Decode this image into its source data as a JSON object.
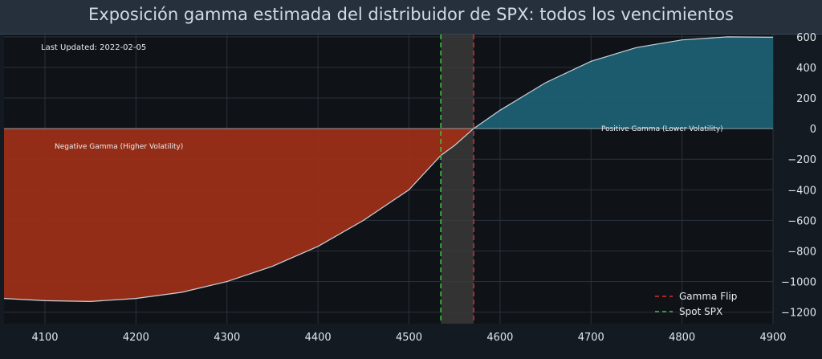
{
  "chart_data": {
    "type": "area",
    "title": "Exposición gamma estimada del distribuidor de SPX: todos los vencimientos",
    "xlabel": "",
    "ylabel": "",
    "xlim": [
      4055,
      4900
    ],
    "ylim": [
      -1275,
      615
    ],
    "x_ticks": [
      4100,
      4200,
      4300,
      4400,
      4500,
      4600,
      4700,
      4800,
      4900
    ],
    "y_ticks": [
      600,
      400,
      200,
      0,
      -200,
      -400,
      -600,
      -800,
      -1000,
      -1200
    ],
    "series": [
      {
        "x": [
          4055,
          4100,
          4150,
          4200,
          4250,
          4300,
          4350,
          4400,
          4450,
          4500,
          4535,
          4550,
          4571,
          4600,
          4650,
          4700,
          4750,
          4800,
          4850,
          4900
        ],
        "y": [
          -1110,
          -1125,
          -1130,
          -1110,
          -1070,
          -1000,
          -900,
          -770,
          -600,
          -400,
          -175,
          -110,
          0,
          120,
          300,
          440,
          530,
          580,
          600,
          597
        ]
      }
    ],
    "markers": {
      "spot_spx": 4535,
      "gamma_flip": 4571
    },
    "regions": {
      "negative_label": "Negative Gamma (Higher Volatility)",
      "positive_label": "Positive Gamma (Lower Volatility)"
    },
    "legend": {
      "position": "bottom-right",
      "entries": [
        "Gamma Flip",
        "Spot SPX"
      ]
    },
    "annotation": "Last Updated: 2022-02-05",
    "grid": true,
    "colors": {
      "negative_fill": "#9c2e17",
      "positive_fill": "#1c5f72",
      "curve": "#c8d3dc",
      "gamma_flip_line": "#e02a2a",
      "spot_line": "#3fc23f",
      "band": "#3a3a3a"
    }
  }
}
